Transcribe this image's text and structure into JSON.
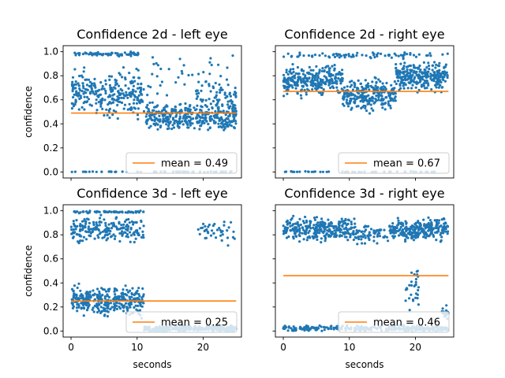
{
  "figure": {
    "background": "#ffffff"
  },
  "colors": {
    "points": "#1f77b4",
    "mean_line": "#ff7f0e",
    "axes": "#000000",
    "legend_border": "#cccccc"
  },
  "chart_data": [
    {
      "type": "scatter",
      "title": "Confidence 2d - left eye",
      "xlabel": "",
      "ylabel": "confidence",
      "xlim": [
        -1.2,
        25.8
      ],
      "ylim": [
        -0.05,
        1.05
      ],
      "xticks": [
        0,
        10,
        20
      ],
      "yticks": [
        0.0,
        0.2,
        0.4,
        0.6,
        0.8,
        1.0
      ],
      "show_xticklabels": false,
      "show_yticklabels": true,
      "grid": false,
      "legend": {
        "label": "mean = 0.49",
        "position": "lower right"
      },
      "mean": 0.49,
      "series_color": "#1f77b4",
      "clusters": [
        {
          "x_range": [
            0,
            11
          ],
          "y_center": 0.65,
          "y_spread": 0.14,
          "n": 280
        },
        {
          "x_range": [
            0,
            10.5
          ],
          "y_center": 0.98,
          "y_spread": 0.015,
          "n": 70
        },
        {
          "x_range": [
            11,
            25
          ],
          "y_center": 0.46,
          "y_spread": 0.09,
          "n": 380
        },
        {
          "x_range": [
            19,
            25
          ],
          "y_center": 0.62,
          "y_spread": 0.1,
          "n": 70
        },
        {
          "x_range": [
            11,
            25
          ],
          "y_center": 0.8,
          "y_spread": 0.15,
          "n": 40
        },
        {
          "x_range": [
            0,
            25
          ],
          "y_center": 0.0,
          "y_spread": 0.003,
          "n": 60
        }
      ]
    },
    {
      "type": "scatter",
      "title": "Confidence 2d - right eye",
      "xlabel": "",
      "ylabel": "",
      "xlim": [
        -1.2,
        25.8
      ],
      "ylim": [
        -0.05,
        1.05
      ],
      "xticks": [
        0,
        10,
        20
      ],
      "yticks": [
        0.0,
        0.2,
        0.4,
        0.6,
        0.8,
        1.0
      ],
      "show_xticklabels": false,
      "show_yticklabels": false,
      "grid": false,
      "legend": {
        "label": "mean = 0.67",
        "position": "lower right"
      },
      "mean": 0.67,
      "series_color": "#1f77b4",
      "clusters": [
        {
          "x_range": [
            0,
            9
          ],
          "y_center": 0.76,
          "y_spread": 0.1,
          "n": 280
        },
        {
          "x_range": [
            9,
            17
          ],
          "y_center": 0.64,
          "y_spread": 0.1,
          "n": 260
        },
        {
          "x_range": [
            17,
            25
          ],
          "y_center": 0.8,
          "y_spread": 0.1,
          "n": 280
        },
        {
          "x_range": [
            0,
            25
          ],
          "y_center": 0.97,
          "y_spread": 0.02,
          "n": 80
        },
        {
          "x_range": [
            0,
            25
          ],
          "y_center": 0.0,
          "y_spread": 0.003,
          "n": 50
        }
      ]
    },
    {
      "type": "scatter",
      "title": "Confidence 3d - left eye",
      "xlabel": "seconds",
      "ylabel": "confidence",
      "xlim": [
        -1.2,
        25.8
      ],
      "ylim": [
        -0.05,
        1.05
      ],
      "xticks": [
        0,
        10,
        20
      ],
      "yticks": [
        0.0,
        0.2,
        0.4,
        0.6,
        0.8,
        1.0
      ],
      "show_xticklabels": true,
      "show_yticklabels": true,
      "grid": false,
      "legend": {
        "label": "mean = 0.25",
        "position": "lower right"
      },
      "mean": 0.25,
      "series_color": "#1f77b4",
      "clusters": [
        {
          "x_range": [
            0,
            11
          ],
          "y_center": 0.84,
          "y_spread": 0.08,
          "n": 200
        },
        {
          "x_range": [
            0,
            11
          ],
          "y_center": 0.99,
          "y_spread": 0.008,
          "n": 60
        },
        {
          "x_range": [
            0,
            11
          ],
          "y_center": 0.25,
          "y_spread": 0.1,
          "n": 330
        },
        {
          "x_range": [
            11,
            25
          ],
          "y_center": 0.02,
          "y_spread": 0.02,
          "n": 300
        },
        {
          "x_range": [
            19,
            25
          ],
          "y_center": 0.82,
          "y_spread": 0.08,
          "n": 40
        }
      ]
    },
    {
      "type": "scatter",
      "title": "Confidence 3d - right eye",
      "xlabel": "seconds",
      "ylabel": "",
      "xlim": [
        -1.2,
        25.8
      ],
      "ylim": [
        -0.05,
        1.05
      ],
      "xticks": [
        0,
        10,
        20
      ],
      "yticks": [
        0.0,
        0.2,
        0.4,
        0.6,
        0.8,
        1.0
      ],
      "show_xticklabels": true,
      "show_yticklabels": false,
      "grid": false,
      "legend": {
        "label": "mean = 0.46",
        "position": "lower right"
      },
      "mean": 0.46,
      "series_color": "#1f77b4",
      "clusters": [
        {
          "x_range": [
            0,
            11
          ],
          "y_center": 0.85,
          "y_spread": 0.08,
          "n": 280
        },
        {
          "x_range": [
            11,
            16
          ],
          "y_center": 0.8,
          "y_spread": 0.06,
          "n": 60
        },
        {
          "x_range": [
            16,
            25
          ],
          "y_center": 0.84,
          "y_spread": 0.07,
          "n": 260
        },
        {
          "x_range": [
            0,
            25
          ],
          "y_center": 0.02,
          "y_spread": 0.02,
          "n": 280
        },
        {
          "x_range": [
            18.5,
            20.5
          ],
          "y_center": 0.35,
          "y_spread": 0.15,
          "n": 30
        },
        {
          "x_range": [
            24,
            25
          ],
          "y_center": 0.15,
          "y_spread": 0.05,
          "n": 20
        }
      ]
    }
  ]
}
